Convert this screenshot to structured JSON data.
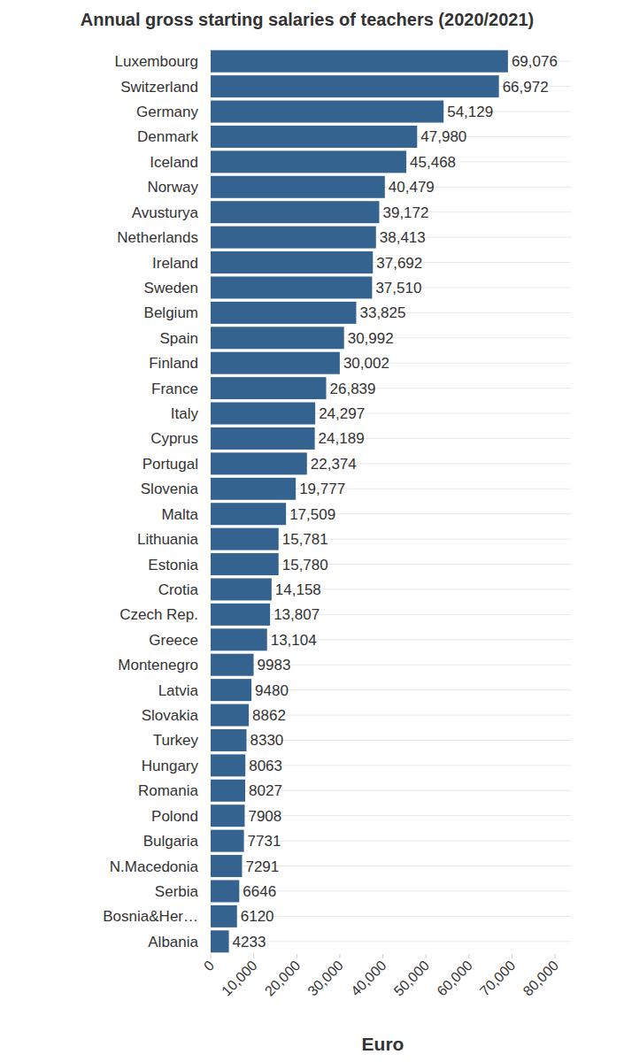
{
  "chart_data": {
    "type": "bar",
    "title": "Annual gross starting salaries of teachers (2020/2021)",
    "x_label": "Euro",
    "orientation": "horizontal",
    "categories": [
      "Luxembourg",
      "Switzerland",
      "Germany",
      "Denmark",
      "Iceland",
      "Norway",
      "Avusturya",
      "Netherlands",
      "Ireland",
      "Sweden",
      "Belgium",
      "Spain",
      "Finland",
      "France",
      "Italy",
      "Cyprus",
      "Portugal",
      "Slovenia",
      "Malta",
      "Lithuania",
      "Estonia",
      "Crotia",
      "Czech Rep.",
      "Greece",
      "Montenegro",
      "Latvia",
      "Slovakia",
      "Turkey",
      "Hungary",
      "Romania",
      "Polond",
      "Bulgaria",
      "N.Macedonia",
      "Serbia",
      "Bosnia&Her…",
      "Albania"
    ],
    "values": [
      69076,
      66972,
      54129,
      47980,
      45468,
      40479,
      39172,
      38413,
      37692,
      37510,
      33825,
      30992,
      30002,
      26839,
      24297,
      24189,
      22374,
      19777,
      17509,
      15781,
      15780,
      14158,
      13807,
      13104,
      9983,
      9480,
      8862,
      8330,
      8063,
      8027,
      7908,
      7731,
      7291,
      6646,
      6120,
      4233
    ],
    "value_labels": [
      "69,076",
      "66,972",
      "54,129",
      "47,980",
      "45,468",
      "40,479",
      "39,172",
      "38,413",
      "37,692",
      "37,510",
      "33,825",
      "30,992",
      "30,002",
      "26,839",
      "24,297",
      "24,189",
      "22,374",
      "19,777",
      "17,509",
      "15,781",
      "15,780",
      "14,158",
      "13,807",
      "13,104",
      "9983",
      "9480",
      "8862",
      "8330",
      "8063",
      "8027",
      "7908",
      "7731",
      "7291",
      "6646",
      "6120",
      "4233"
    ],
    "color": "#35638f",
    "data_labels": true,
    "grid": true,
    "xlim": [
      0,
      80000
    ],
    "xticks": [
      0,
      {
        "value": 10000,
        "label": "10,000"
      },
      {
        "value": 20000,
        "label": "20,000"
      },
      {
        "value": 30000,
        "label": "30,000"
      },
      {
        "value": 40000,
        "label": "40,000"
      },
      {
        "value": 50000,
        "label": "50,000"
      },
      {
        "value": 60000,
        "label": "60,000"
      },
      {
        "value": 70000,
        "label": "70,000"
      },
      {
        "value": 80000,
        "label": "80,000"
      }
    ]
  }
}
